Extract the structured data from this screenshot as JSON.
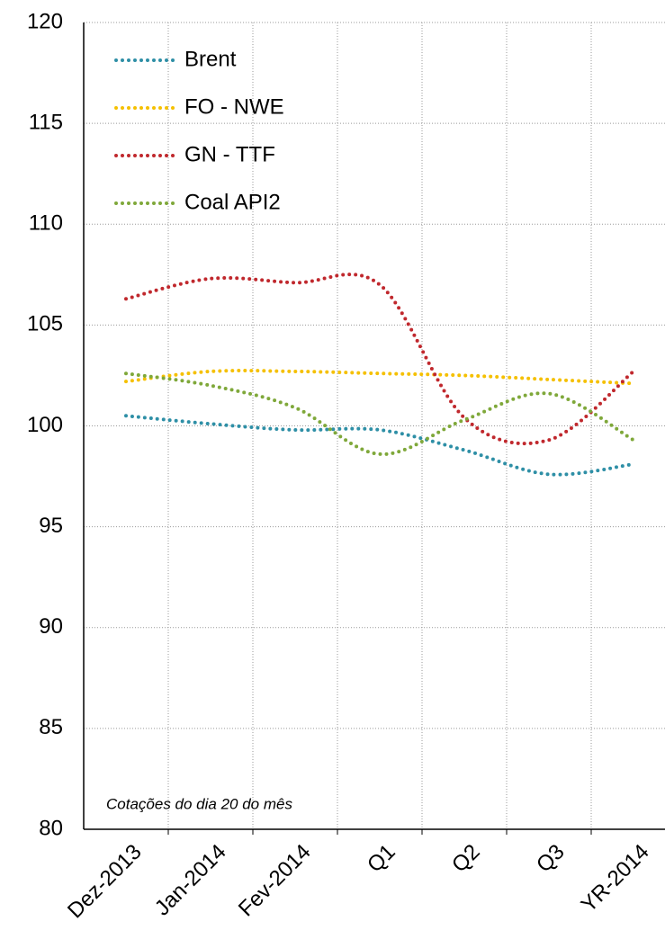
{
  "chart_data": {
    "type": "line",
    "annotation": "Cotações do dia 20 do mês",
    "categories": [
      "Dez-2013",
      "Jan-2014",
      "Fev-2014",
      "Q1",
      "Q2",
      "Q3",
      "YR-2014"
    ],
    "series": [
      {
        "name": "Brent",
        "color": "#2e8fa6",
        "values": [
          100.5,
          100.1,
          99.8,
          99.8,
          98.8,
          97.6,
          98.1
        ]
      },
      {
        "name": "FO - NWE",
        "color": "#f5c000",
        "values": [
          102.2,
          102.7,
          102.7,
          102.6,
          102.5,
          102.3,
          102.1
        ]
      },
      {
        "name": "GN - TTF",
        "color": "#c0282d",
        "values": [
          106.3,
          107.3,
          107.1,
          107.0,
          100.4,
          99.3,
          102.7
        ]
      },
      {
        "name": "Coal API2",
        "color": "#7fa83a",
        "values": [
          102.6,
          102.0,
          100.9,
          98.6,
          100.3,
          101.6,
          99.3
        ]
      }
    ],
    "ylim": [
      80,
      120
    ],
    "yticks": [
      80,
      85,
      90,
      95,
      100,
      105,
      110,
      115,
      120
    ],
    "grid": true,
    "legend": "upper left"
  }
}
